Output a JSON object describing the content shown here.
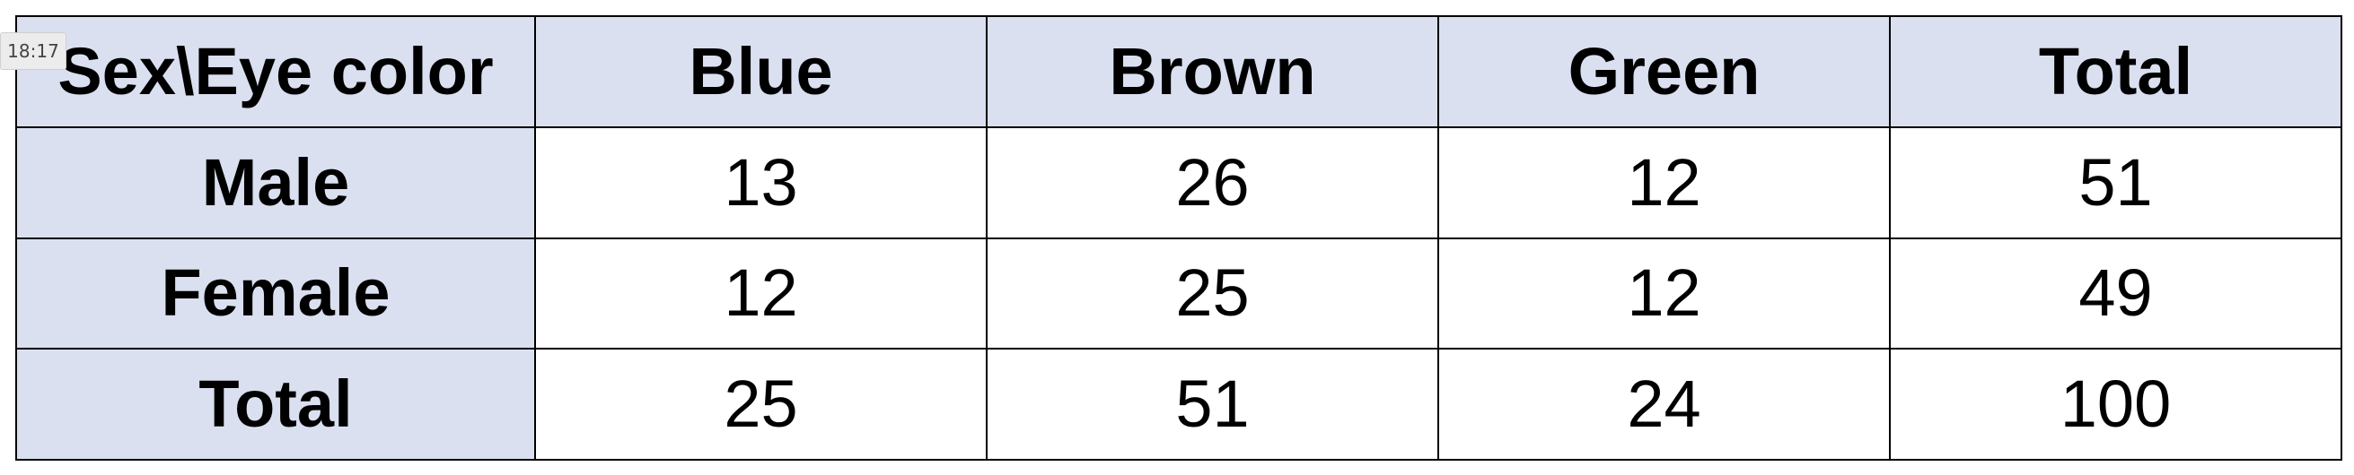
{
  "overlay": {
    "timestamp": "18:17"
  },
  "table": {
    "columns": [
      "Sex\\Eye color",
      "Blue",
      "Brown",
      "Green",
      "Total"
    ],
    "rows": [
      {
        "label": "Male",
        "values": [
          "13",
          "26",
          "12",
          "51"
        ]
      },
      {
        "label": "Female",
        "values": [
          "12",
          "25",
          "12",
          "49"
        ]
      },
      {
        "label": "Total",
        "values": [
          "25",
          "51",
          "24",
          "100"
        ]
      }
    ]
  },
  "colors": {
    "header_bg": "#dae0f0",
    "cell_bg": "#ffffff",
    "border": "#000000"
  }
}
